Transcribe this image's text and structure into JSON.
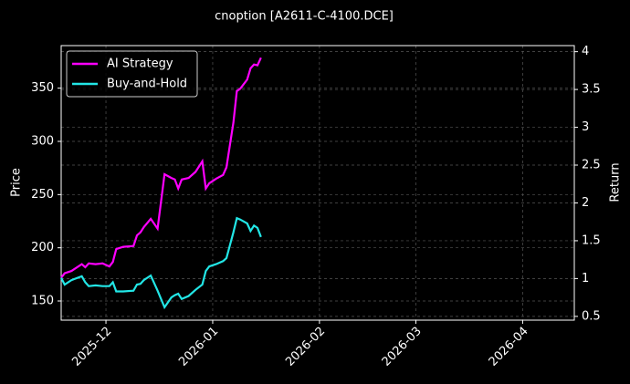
{
  "chart_data": {
    "type": "line",
    "title": "cnoption [A2611-C-4100.DCE]",
    "y_label": "Price",
    "y2_label": "Return",
    "x": [
      "2025-11-18",
      "2025-11-19",
      "2025-11-21",
      "2025-11-24",
      "2025-11-25",
      "2025-11-26",
      "2025-11-28",
      "2025-11-30",
      "2025-12-02",
      "2025-12-03",
      "2025-12-04",
      "2025-12-06",
      "2025-12-09",
      "2025-12-10",
      "2025-12-11",
      "2025-12-12",
      "2025-12-14",
      "2025-12-16",
      "2025-12-18",
      "2025-12-20",
      "2025-12-21",
      "2025-12-22",
      "2025-12-23",
      "2025-12-25",
      "2025-12-27",
      "2025-12-29",
      "2025-12-30",
      "2025-12-31",
      "2026-01-02",
      "2026-01-04",
      "2026-01-05",
      "2026-01-07",
      "2026-01-08",
      "2026-01-09",
      "2026-01-11",
      "2026-01-12",
      "2026-01-13",
      "2026-01-14",
      "2026-01-15"
    ],
    "series": [
      {
        "name": "AI Strategy",
        "color": "#ff00ff",
        "axis": "y2",
        "values": [
          1.01,
          1.07,
          1.1,
          1.19,
          1.15,
          1.2,
          1.19,
          1.2,
          1.16,
          1.22,
          1.39,
          1.42,
          1.43,
          1.57,
          1.61,
          1.68,
          1.79,
          1.66,
          2.38,
          2.33,
          2.31,
          2.19,
          2.31,
          2.33,
          2.41,
          2.55,
          2.19,
          2.26,
          2.32,
          2.37,
          2.47,
          3.06,
          3.48,
          3.51,
          3.63,
          3.78,
          3.83,
          3.82,
          3.92
        ]
      },
      {
        "name": "Buy-and-Hold",
        "color": "#22e6e6",
        "axis": "y2",
        "values": [
          1.01,
          0.92,
          0.98,
          1.03,
          0.95,
          0.9,
          0.91,
          0.9,
          0.9,
          0.95,
          0.83,
          0.83,
          0.84,
          0.92,
          0.93,
          0.98,
          1.04,
          0.84,
          0.62,
          0.75,
          0.78,
          0.8,
          0.73,
          0.77,
          0.85,
          0.92,
          1.1,
          1.16,
          1.19,
          1.23,
          1.27,
          1.61,
          1.8,
          1.78,
          1.73,
          1.63,
          1.7,
          1.67,
          1.55
        ]
      }
    ],
    "xlim": [
      "2025-11-18",
      "2026-04-16"
    ],
    "xticks": [
      {
        "value": "2025-12-01",
        "label": "2025-12"
      },
      {
        "value": "2026-01-01",
        "label": "2026-01"
      },
      {
        "value": "2026-02-01",
        "label": "2026-02"
      },
      {
        "value": "2026-03-01",
        "label": "2026-03"
      },
      {
        "value": "2026-04-01",
        "label": "2026-04"
      }
    ],
    "ylim": [
      132,
      390
    ],
    "yticks": [
      150,
      200,
      250,
      300,
      350
    ],
    "y2lim": [
      0.45,
      4.08
    ],
    "y2ticks": [
      0.5,
      1.0,
      1.5,
      2.0,
      2.5,
      3.0,
      3.5,
      4.0
    ],
    "grid": true,
    "legend": "upper left"
  }
}
